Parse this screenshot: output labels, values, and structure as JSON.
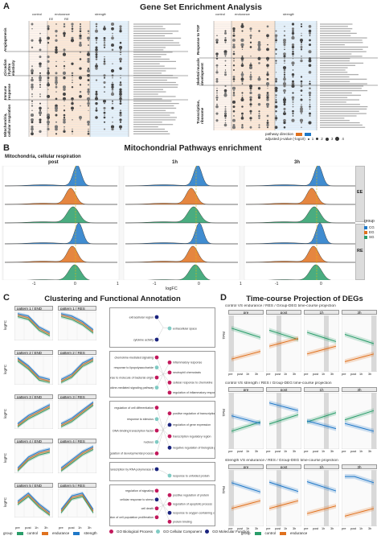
{
  "panel_a": {
    "letter": "A",
    "title": "Gene Set Enrichment Analysis",
    "left_groups": [
      "Angiogenesis",
      "Circadian rhythm elasticity",
      "Immune response",
      "Mitochondria, cellular respiration"
    ],
    "right_groups": [
      "Response to TGF",
      "Skeletal muscle development",
      "Transcription, ribosome"
    ],
    "col_headers": [
      "control",
      "endurance",
      "strength"
    ],
    "sub_headers": [
      "EE",
      "RE"
    ],
    "legend_direction_label": "pathway direction",
    "legend_size_label": "adjusted p-value (-log10)",
    "legend_sizes": [
      "1",
      "2",
      "3",
      "4"
    ]
  },
  "panel_b": {
    "letter": "B",
    "title": "Mitochondrial Pathways enrichment",
    "subtitle": "Mitochondria, cellular respiration",
    "time_columns": [
      "post",
      "1h",
      "3h"
    ],
    "row_facets": [
      "EE",
      "RE"
    ],
    "xlabel": "logFC",
    "x_ticks": [
      "-1",
      "0",
      "1"
    ],
    "legend_title": "group",
    "groups": [
      {
        "name": "CG",
        "color": "#1f78c8"
      },
      {
        "name": "EG",
        "color": "#e0711e"
      },
      {
        "name": "SG",
        "color": "#2a9d6a"
      }
    ]
  },
  "panel_c": {
    "letter": "C",
    "title": "Clustering and Functional Annotation",
    "patterns": [
      {
        "left": "pattern 1 / END",
        "right": "pattern 1 / RES"
      },
      {
        "left": "pattern 2 / END",
        "right": "pattern 2 / RES"
      },
      {
        "left": "pattern 3 / END",
        "right": "pattern 3 / RES"
      },
      {
        "left": "pattern 4 / END",
        "right": "pattern 4 / RES"
      },
      {
        "left": "pattern 5 / END",
        "right": "pattern 5 / RES"
      }
    ],
    "ylabel": "logFC",
    "x_ticks": [
      "pre",
      "post",
      "1h",
      "3h"
    ],
    "legend_title": "group",
    "legend_items": [
      {
        "label": "control",
        "color": "#2a9d6a"
      },
      {
        "label": "endurance",
        "color": "#e0711e"
      },
      {
        "label": "strength",
        "color": "#1f78c8"
      }
    ],
    "go_legend": [
      {
        "label": "GO Biological Process",
        "color": "#c2185b"
      },
      {
        "label": "GO Cellular Component",
        "color": "#80cbc4"
      },
      {
        "label": "GO Molecular Function",
        "color": "#1a237e"
      }
    ],
    "go_terms_1": [
      "extracellular region",
      "extracellular space",
      "cytokine activity"
    ],
    "go_terms_2": [
      "chemokine-mediated signaling",
      "inflammatory response",
      "response to lipopolysaccharide",
      "neutrophil chemotaxis",
      "response to molecule of bacterial origin",
      "cellular response to chemokine",
      "cytokine-mediated signaling pathway",
      "regulation of inflammatory response"
    ],
    "go_terms_3": [
      "regulation of cell differentiation",
      "positive regulation of transcription",
      "response to stimulus",
      "regulation of gene expression",
      "DNA-binding transcription factor",
      "transcription regulatory region",
      "nucleus",
      "negative regulation of biological process",
      "regulation of developmental process"
    ],
    "go_terms_4": [
      "transcription by RNA polymerase II",
      "response to unfolded protein"
    ],
    "go_terms_5": [
      "regulation of signaling",
      "positive regulation of protein",
      "cellular response to stress",
      "regulation of apoptotic process",
      "cell death",
      "response to oxygen-containing compound",
      "regulation of cell population proliferation",
      "protein binding"
    ]
  },
  "panel_d": {
    "letter": "D",
    "title": "Time-course Projection of DEGs",
    "sections": [
      "control VS endurance / RES / Group-DEG time-course projection",
      "control VS strength / RES / Group-DEG time-course projection",
      "strength VS endurance / RES / Group-DEG time-course projection"
    ],
    "time_facets": [
      "pre",
      "post",
      "1h",
      "3h"
    ],
    "ylabel": "TPM",
    "x_ticks": [
      "pre",
      "post",
      "1h",
      "3h"
    ],
    "legend_title": "group",
    "legend_items": [
      {
        "label": "control",
        "color": "#2a9d6a"
      },
      {
        "label": "endurance",
        "color": "#e0711e"
      },
      {
        "label": "strength",
        "color": "#1f78c8"
      }
    ]
  }
}
